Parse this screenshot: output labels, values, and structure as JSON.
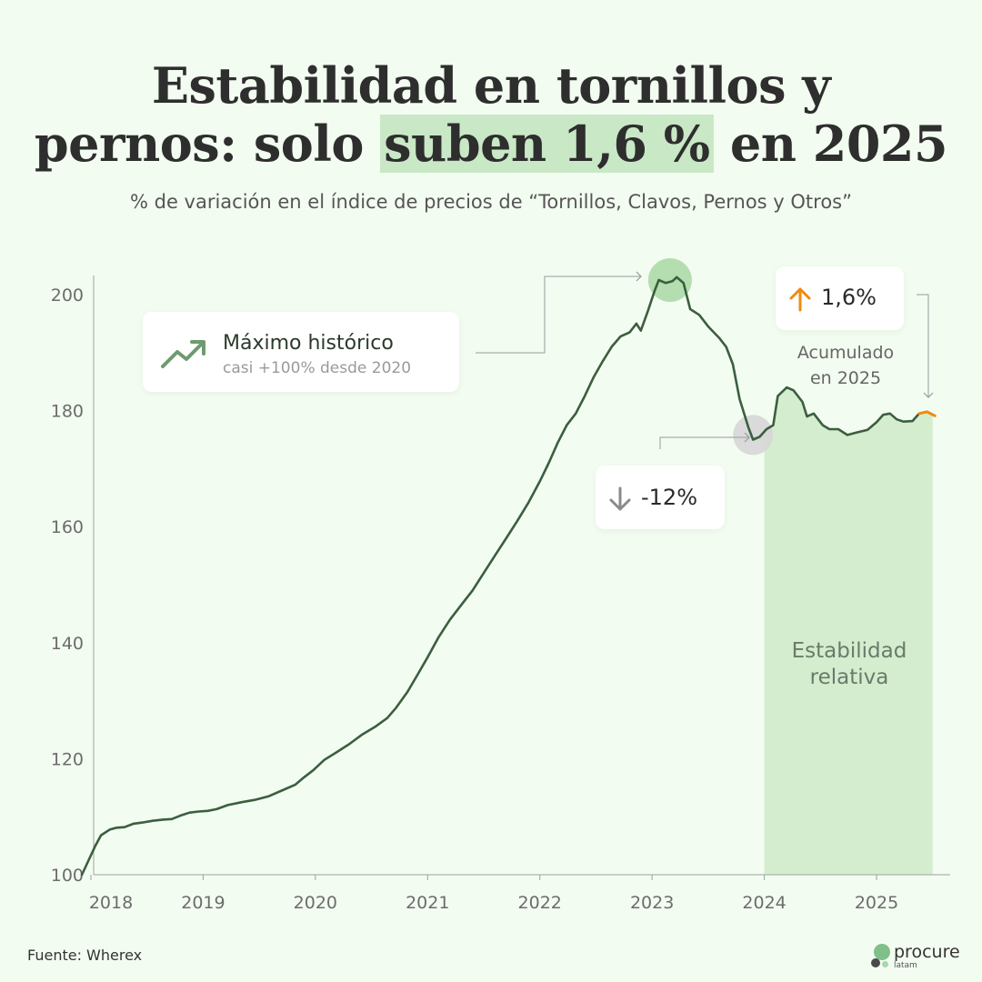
{
  "title": {
    "line1": "Estabilidad en tornillos y",
    "line2_before": "pernos: solo ",
    "line2_highlight": "suben 1,6 %",
    "line2_after": " en 2025"
  },
  "subtitle": "% de variación en el índice de precios de “Tornillos, Clavos, Pernos y Otros”",
  "annotations": {
    "max_title": "Máximo histórico",
    "max_sub": "casi +100% desde 2020",
    "drop_value": "-12%",
    "ytd_value": "1,6%",
    "ytd_label_1": "Acumulado",
    "ytd_label_2": "en 2025",
    "stability_1": "Estabilidad",
    "stability_2": "relativa"
  },
  "source": "Fuente: Wherex",
  "logo": {
    "name": "procure",
    "sub": "latam"
  },
  "icons": {
    "max": "trending-up-icon",
    "drop": "arrow-down-icon",
    "ytd": "arrow-up-icon"
  },
  "colors": {
    "line": "#3b5e3f",
    "highlight": "#c9e8c6",
    "stability_area": "#d4edcf",
    "ytd_segment": "#f08a10",
    "peak_circle": "#a9d8a4",
    "trough_circle": "#d6d6d6"
  },
  "chart_data": {
    "type": "line",
    "title": "",
    "xlabel": "",
    "ylabel": "",
    "xlim": [
      2017.92,
      2025.58
    ],
    "ylim": [
      100,
      203
    ],
    "y_ticks": [
      100,
      120,
      140,
      160,
      180,
      200
    ],
    "x_tick_labels": [
      "2018",
      "2019",
      "2020",
      "2021",
      "2022",
      "2023",
      "2024",
      "2025"
    ],
    "x_tick_values": [
      2018,
      2019,
      2020,
      2021,
      2022,
      2023,
      2024,
      2025
    ],
    "grid": false,
    "highlight_region": {
      "x_start": 2024.0,
      "x_end": 2025.5
    },
    "series": [
      {
        "values": [
          [
            2017.92,
            100.0
          ],
          [
            2017.98,
            102.5
          ],
          [
            2018.04,
            105.0
          ],
          [
            2018.09,
            106.8
          ],
          [
            2018.17,
            107.8
          ],
          [
            2018.23,
            108.1
          ],
          [
            2018.3,
            108.2
          ],
          [
            2018.38,
            108.8
          ],
          [
            2018.46,
            109.0
          ],
          [
            2018.55,
            109.3
          ],
          [
            2018.64,
            109.5
          ],
          [
            2018.72,
            109.6
          ],
          [
            2018.8,
            110.2
          ],
          [
            2018.88,
            110.7
          ],
          [
            2018.96,
            110.9
          ],
          [
            2019.04,
            111.0
          ],
          [
            2019.12,
            111.3
          ],
          [
            2019.22,
            112.0
          ],
          [
            2019.34,
            112.5
          ],
          [
            2019.46,
            112.9
          ],
          [
            2019.58,
            113.5
          ],
          [
            2019.7,
            114.5
          ],
          [
            2019.82,
            115.5
          ],
          [
            2019.9,
            116.8
          ],
          [
            2019.98,
            118.0
          ],
          [
            2020.08,
            119.8
          ],
          [
            2020.18,
            121.0
          ],
          [
            2020.3,
            122.5
          ],
          [
            2020.42,
            124.2
          ],
          [
            2020.54,
            125.6
          ],
          [
            2020.64,
            127.0
          ],
          [
            2020.72,
            128.8
          ],
          [
            2020.82,
            131.5
          ],
          [
            2020.92,
            134.8
          ],
          [
            2021.0,
            137.5
          ],
          [
            2021.1,
            141.0
          ],
          [
            2021.2,
            144.0
          ],
          [
            2021.3,
            146.5
          ],
          [
            2021.4,
            149.0
          ],
          [
            2021.5,
            152.0
          ],
          [
            2021.6,
            155.0
          ],
          [
            2021.7,
            158.0
          ],
          [
            2021.8,
            161.0
          ],
          [
            2021.9,
            164.2
          ],
          [
            2022.0,
            167.8
          ],
          [
            2022.08,
            171.0
          ],
          [
            2022.16,
            174.5
          ],
          [
            2022.24,
            177.5
          ],
          [
            2022.32,
            179.5
          ],
          [
            2022.4,
            182.5
          ],
          [
            2022.48,
            185.8
          ],
          [
            2022.56,
            188.5
          ],
          [
            2022.64,
            191.0
          ],
          [
            2022.72,
            192.8
          ],
          [
            2022.8,
            193.5
          ],
          [
            2022.86,
            195.0
          ],
          [
            2022.9,
            193.8
          ],
          [
            2022.96,
            197.0
          ],
          [
            2023.02,
            200.5
          ],
          [
            2023.06,
            202.5
          ],
          [
            2023.12,
            202.0
          ],
          [
            2023.18,
            202.3
          ],
          [
            2023.22,
            203.0
          ],
          [
            2023.28,
            202.0
          ],
          [
            2023.34,
            197.5
          ],
          [
            2023.42,
            196.5
          ],
          [
            2023.5,
            194.5
          ],
          [
            2023.6,
            192.5
          ],
          [
            2023.66,
            191.0
          ],
          [
            2023.72,
            188.0
          ],
          [
            2023.78,
            182.0
          ],
          [
            2023.86,
            177.0
          ],
          [
            2023.9,
            175.0
          ],
          [
            2023.96,
            175.5
          ],
          [
            2024.02,
            176.8
          ],
          [
            2024.08,
            177.5
          ],
          [
            2024.12,
            182.5
          ],
          [
            2024.2,
            184.0
          ],
          [
            2024.26,
            183.5
          ],
          [
            2024.34,
            181.5
          ],
          [
            2024.38,
            179.0
          ],
          [
            2024.44,
            179.5
          ],
          [
            2024.52,
            177.5
          ],
          [
            2024.58,
            176.8
          ],
          [
            2024.66,
            176.8
          ],
          [
            2024.74,
            175.8
          ],
          [
            2024.82,
            176.2
          ],
          [
            2024.92,
            176.7
          ],
          [
            2025.0,
            178.0
          ],
          [
            2025.06,
            179.3
          ],
          [
            2025.12,
            179.5
          ],
          [
            2025.18,
            178.5
          ],
          [
            2025.24,
            178.1
          ],
          [
            2025.32,
            178.2
          ],
          [
            2025.38,
            179.5
          ],
          [
            2025.45,
            179.8
          ],
          [
            2025.52,
            179.1
          ]
        ]
      }
    ],
    "ytd_segment_from_x": 2025.38,
    "peak_point": [
      2023.16,
      202.5
    ],
    "trough_point": [
      2023.9,
      175.8
    ]
  }
}
